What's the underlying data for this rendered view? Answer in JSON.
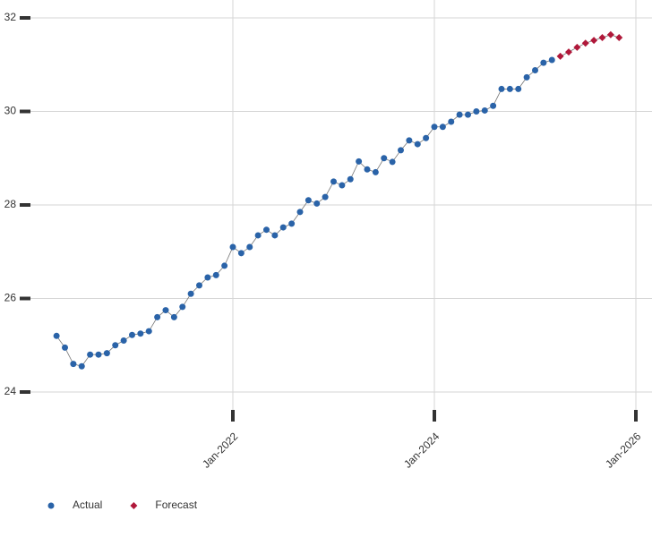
{
  "chart_data": {
    "type": "line",
    "x_format": "month",
    "xlim": [
      "2020-01",
      "2026-03"
    ],
    "xticks": [
      {
        "value": "2022-01",
        "label": "Jan-2022"
      },
      {
        "value": "2024-01",
        "label": "Jan-2024"
      },
      {
        "value": "2026-01",
        "label": "Jan-2026"
      }
    ],
    "ylim": [
      24,
      32
    ],
    "yticks": [
      24,
      26,
      28,
      30,
      32
    ],
    "grid": true,
    "legend": "bottom-left",
    "series": [
      {
        "name": "Actual",
        "color": "#2a63a8",
        "marker": "circle",
        "x": [
          "2020-04",
          "2020-05",
          "2020-06",
          "2020-07",
          "2020-08",
          "2020-09",
          "2020-10",
          "2020-11",
          "2020-12",
          "2021-01",
          "2021-02",
          "2021-03",
          "2021-04",
          "2021-05",
          "2021-06",
          "2021-07",
          "2021-08",
          "2021-09",
          "2021-10",
          "2021-11",
          "2021-12",
          "2022-01",
          "2022-02",
          "2022-03",
          "2022-04",
          "2022-05",
          "2022-06",
          "2022-07",
          "2022-08",
          "2022-09",
          "2022-10",
          "2022-11",
          "2022-12",
          "2023-01",
          "2023-02",
          "2023-03",
          "2023-04",
          "2023-05",
          "2023-06",
          "2023-07",
          "2023-08",
          "2023-09",
          "2023-10",
          "2023-11",
          "2023-12",
          "2024-01",
          "2024-02",
          "2024-03",
          "2024-04",
          "2024-05",
          "2024-06",
          "2024-07",
          "2024-08",
          "2024-09",
          "2024-10",
          "2024-11",
          "2024-12",
          "2025-01",
          "2025-02",
          "2025-03"
        ],
        "values": [
          25.2,
          24.95,
          24.6,
          24.55,
          24.8,
          24.8,
          24.83,
          25.0,
          25.1,
          25.22,
          25.25,
          25.3,
          25.6,
          25.75,
          25.6,
          25.82,
          26.1,
          26.28,
          26.45,
          26.5,
          26.7,
          27.1,
          26.97,
          27.1,
          27.35,
          27.47,
          27.35,
          27.52,
          27.6,
          27.85,
          28.1,
          28.03,
          28.17,
          28.5,
          28.42,
          28.55,
          28.93,
          28.76,
          28.7,
          29.0,
          28.92,
          29.17,
          29.38,
          29.3,
          29.43,
          29.67,
          29.67,
          29.78,
          29.93,
          29.93,
          30.0,
          30.02,
          30.12,
          30.48,
          30.48,
          30.48,
          30.73,
          30.88,
          31.04,
          31.1
        ]
      },
      {
        "name": "Forecast",
        "color": "#b0183a",
        "marker": "diamond",
        "x": [
          "2025-04",
          "2025-05",
          "2025-06",
          "2025-07",
          "2025-08",
          "2025-09",
          "2025-10",
          "2025-11"
        ],
        "values": [
          31.18,
          31.27,
          31.37,
          31.46,
          31.52,
          31.58,
          31.64,
          31.58
        ]
      }
    ]
  }
}
